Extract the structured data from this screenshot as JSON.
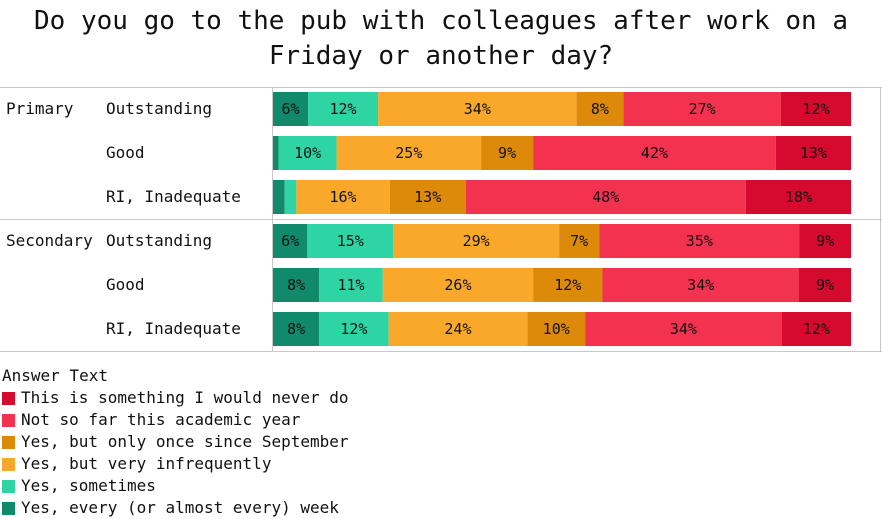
{
  "title": "Do you go to the pub with colleagues after work on a\nFriday or another day?",
  "chart_data": {
    "type": "bar",
    "orientation": "horizontal",
    "stacked": "100%",
    "groups": [
      {
        "name": "Primary",
        "rows": [
          {
            "label": "Outstanding",
            "values": [
              6,
              12,
              34,
              8,
              27,
              12
            ]
          },
          {
            "label": "Good",
            "values": [
              1,
              10,
              25,
              9,
              42,
              13
            ]
          },
          {
            "label": "RI, Inadequate",
            "values": [
              2,
              2,
              16,
              13,
              48,
              18
            ]
          }
        ]
      },
      {
        "name": "Secondary",
        "rows": [
          {
            "label": "Outstanding",
            "values": [
              6,
              15,
              29,
              7,
              35,
              9
            ]
          },
          {
            "label": "Good",
            "values": [
              8,
              11,
              26,
              12,
              34,
              9
            ]
          },
          {
            "label": "RI, Inadequate",
            "values": [
              8,
              12,
              24,
              10,
              34,
              12
            ]
          }
        ]
      }
    ],
    "series": [
      {
        "name": "Yes, every (or almost every) week",
        "color": "#108a6a"
      },
      {
        "name": "Yes, sometimes",
        "color": "#2fd4a4"
      },
      {
        "name": "Yes, but very infrequently",
        "color": "#f9a82a"
      },
      {
        "name": "Yes, but only once since September",
        "color": "#dd8a0a"
      },
      {
        "name": "Not so far this academic year",
        "color": "#f2324f"
      },
      {
        "name": "This is something I would never do",
        "color": "#d50a2e"
      }
    ],
    "min_label_value": 5,
    "legend": {
      "title": "Answer Text",
      "position": "bottom-left",
      "items": [
        {
          "name": "This is something I would never do",
          "color": "#d50a2e"
        },
        {
          "name": "Not so far this academic year",
          "color": "#f2324f"
        },
        {
          "name": "Yes, but only once since September",
          "color": "#dd8a0a"
        },
        {
          "name": "Yes, but very infrequently",
          "color": "#f9a82a"
        },
        {
          "name": "Yes, sometimes",
          "color": "#2fd4a4"
        },
        {
          "name": "Yes, every (or almost every) week",
          "color": "#108a6a"
        }
      ]
    },
    "xlim": [
      0,
      100
    ]
  }
}
